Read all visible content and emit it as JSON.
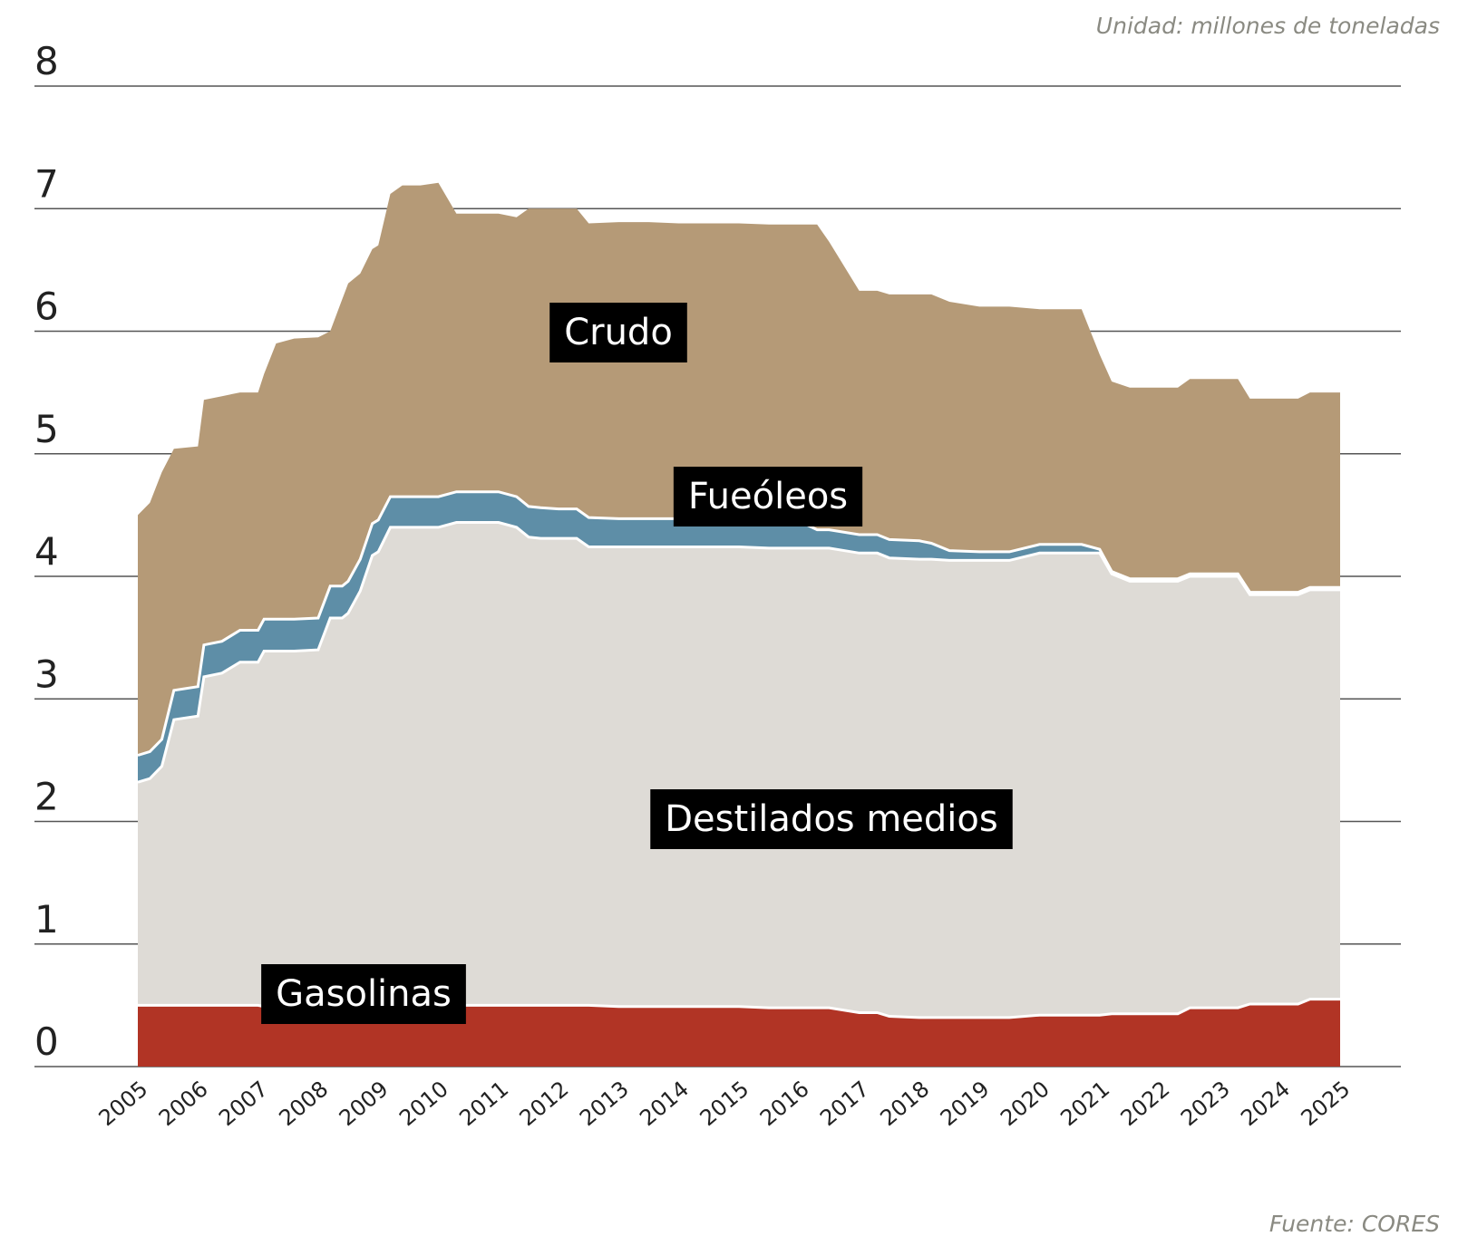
{
  "unit_note": "Unidad: millones de toneladas",
  "source_note": "Fuente: CORES",
  "colors": {
    "gasolinas": "#b13425",
    "destilados": "#dedbd6",
    "fueoleos": "#5e8ea7",
    "crudo": "#b59a77",
    "grid": "#555555"
  },
  "chart_data": {
    "type": "area",
    "stacked": true,
    "title": "",
    "xlabel": "",
    "ylabel": "",
    "ylim": [
      0,
      8
    ],
    "yticks": [
      "0",
      "1",
      "2",
      "3",
      "4",
      "5",
      "6",
      "7",
      "8"
    ],
    "xticks": [
      "2005",
      "2006",
      "2007",
      "2008",
      "2009",
      "2010",
      "2011",
      "2012",
      "2013",
      "2014",
      "2015",
      "2016",
      "2017",
      "2018",
      "2019",
      "2020",
      "2021",
      "2022",
      "2023",
      "2024",
      "2025"
    ],
    "grid": true,
    "x": [
      2005.0,
      2005.2,
      2005.4,
      2005.6,
      2006.0,
      2006.1,
      2006.4,
      2006.7,
      2007.0,
      2007.1,
      2007.3,
      2007.6,
      2008.0,
      2008.2,
      2008.4,
      2008.5,
      2008.7,
      2008.9,
      2009.0,
      2009.2,
      2009.4,
      2009.7,
      2010.0,
      2010.3,
      2010.6,
      2011.0,
      2011.3,
      2011.5,
      2011.7,
      2012.0,
      2012.3,
      2012.5,
      2013.0,
      2013.5,
      2014.0,
      2014.5,
      2015.0,
      2015.5,
      2016.0,
      2016.3,
      2016.5,
      2017.0,
      2017.3,
      2017.5,
      2018.0,
      2018.2,
      2018.5,
      2019.0,
      2019.5,
      2020.0,
      2020.5,
      2020.7,
      2021.0,
      2021.2,
      2021.5,
      2022.0,
      2022.3,
      2022.5,
      2023.0,
      2023.3,
      2023.5,
      2024.0,
      2024.3,
      2024.5,
      2025.0
    ],
    "series": [
      {
        "name": "Gasolinas",
        "values": [
          0.5,
          0.5,
          0.5,
          0.5,
          0.5,
          0.5,
          0.5,
          0.5,
          0.5,
          0.49,
          0.49,
          0.49,
          0.49,
          0.49,
          0.49,
          0.49,
          0.49,
          0.5,
          0.5,
          0.5,
          0.5,
          0.5,
          0.5,
          0.5,
          0.5,
          0.5,
          0.5,
          0.5,
          0.5,
          0.5,
          0.5,
          0.5,
          0.49,
          0.49,
          0.49,
          0.49,
          0.49,
          0.48,
          0.48,
          0.48,
          0.48,
          0.44,
          0.44,
          0.41,
          0.4,
          0.4,
          0.4,
          0.4,
          0.4,
          0.42,
          0.42,
          0.42,
          0.42,
          0.43,
          0.43,
          0.43,
          0.43,
          0.48,
          0.48,
          0.48,
          0.51,
          0.51,
          0.51,
          0.55,
          0.55
        ]
      },
      {
        "name": "Destilados medios",
        "values": [
          1.82,
          1.85,
          1.95,
          2.33,
          2.36,
          2.68,
          2.71,
          2.8,
          2.8,
          2.9,
          2.9,
          2.9,
          2.91,
          3.17,
          3.17,
          3.21,
          3.39,
          3.67,
          3.7,
          3.9,
          3.9,
          3.9,
          3.9,
          3.94,
          3.94,
          3.94,
          3.9,
          3.82,
          3.81,
          3.81,
          3.81,
          3.74,
          3.75,
          3.75,
          3.75,
          3.75,
          3.75,
          3.75,
          3.75,
          3.75,
          3.75,
          3.75,
          3.75,
          3.74,
          3.74,
          3.74,
          3.73,
          3.73,
          3.73,
          3.77,
          3.77,
          3.77,
          3.77,
          3.59,
          3.53,
          3.53,
          3.53,
          3.52,
          3.52,
          3.52,
          3.34,
          3.34,
          3.34,
          3.34,
          3.34
        ]
      },
      {
        "name": "Fueóleos",
        "values": [
          0.22,
          0.22,
          0.22,
          0.24,
          0.24,
          0.26,
          0.26,
          0.26,
          0.26,
          0.26,
          0.26,
          0.26,
          0.26,
          0.26,
          0.26,
          0.26,
          0.26,
          0.26,
          0.26,
          0.25,
          0.25,
          0.25,
          0.25,
          0.25,
          0.25,
          0.25,
          0.25,
          0.25,
          0.25,
          0.24,
          0.24,
          0.24,
          0.23,
          0.23,
          0.23,
          0.22,
          0.22,
          0.22,
          0.22,
          0.15,
          0.15,
          0.15,
          0.15,
          0.15,
          0.15,
          0.13,
          0.08,
          0.07,
          0.07,
          0.07,
          0.07,
          0.07,
          0.03,
          0.02,
          0.02,
          0.02,
          0.02,
          0.02,
          0.02,
          0.02,
          0.02,
          0.02,
          0.02,
          0.02,
          0.02
        ]
      },
      {
        "name": "Crudo",
        "values": [
          1.96,
          2.03,
          2.18,
          1.97,
          1.96,
          2.0,
          2.0,
          1.94,
          1.94,
          2.0,
          2.25,
          2.29,
          2.29,
          2.08,
          2.34,
          2.43,
          2.33,
          2.24,
          2.24,
          2.47,
          2.54,
          2.54,
          2.56,
          2.27,
          2.27,
          2.27,
          2.28,
          2.43,
          2.44,
          2.45,
          2.45,
          2.4,
          2.42,
          2.42,
          2.41,
          2.42,
          2.42,
          2.42,
          2.42,
          2.49,
          2.35,
          1.99,
          1.99,
          2.0,
          2.01,
          2.03,
          2.03,
          2.0,
          2.0,
          1.92,
          1.92,
          1.92,
          1.59,
          1.55,
          1.56,
          1.56,
          1.56,
          1.59,
          1.59,
          1.59,
          1.58,
          1.58,
          1.58,
          1.59,
          1.59
        ]
      }
    ],
    "annotations": [
      {
        "text": "Crudo",
        "series": "Crudo"
      },
      {
        "text": "Fueóleos",
        "series": "Fueóleos"
      },
      {
        "text": "Destilados medios",
        "series": "Destilados medios"
      },
      {
        "text": "Gasolinas",
        "series": "Gasolinas"
      }
    ]
  }
}
